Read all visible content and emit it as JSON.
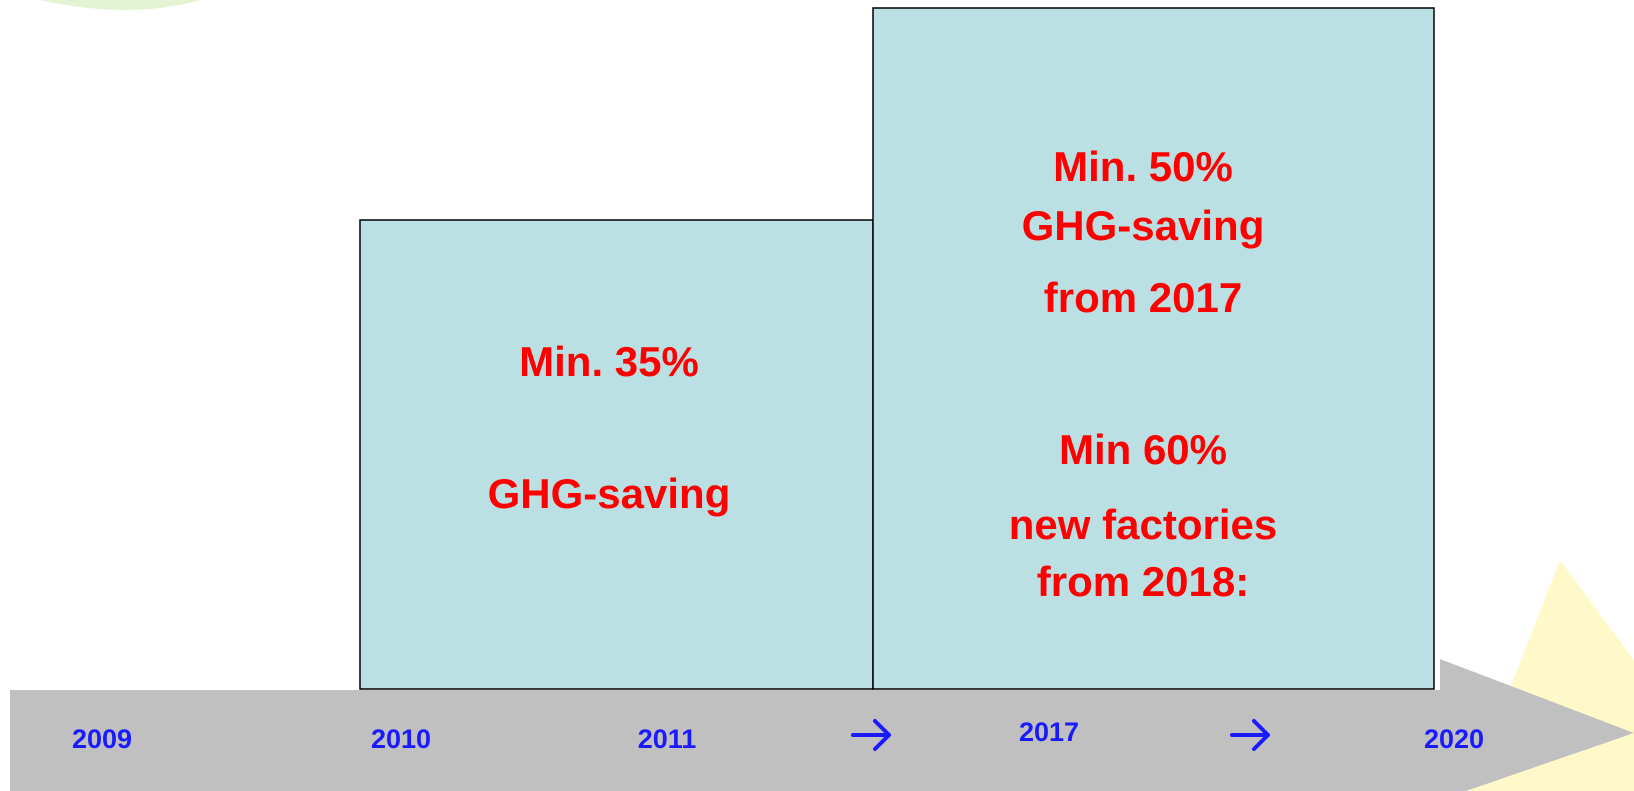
{
  "timeline": {
    "labels": [
      "2009",
      "2010",
      "2011",
      "2017",
      "2020"
    ]
  },
  "boxes": [
    {
      "lines": [
        "Min. 35%",
        "GHG-saving"
      ]
    },
    {
      "lines": [
        "Min. 50%",
        "GHG-saving",
        "from 2017",
        "Min 60%",
        "new factories",
        "from 2018:"
      ]
    }
  ]
}
